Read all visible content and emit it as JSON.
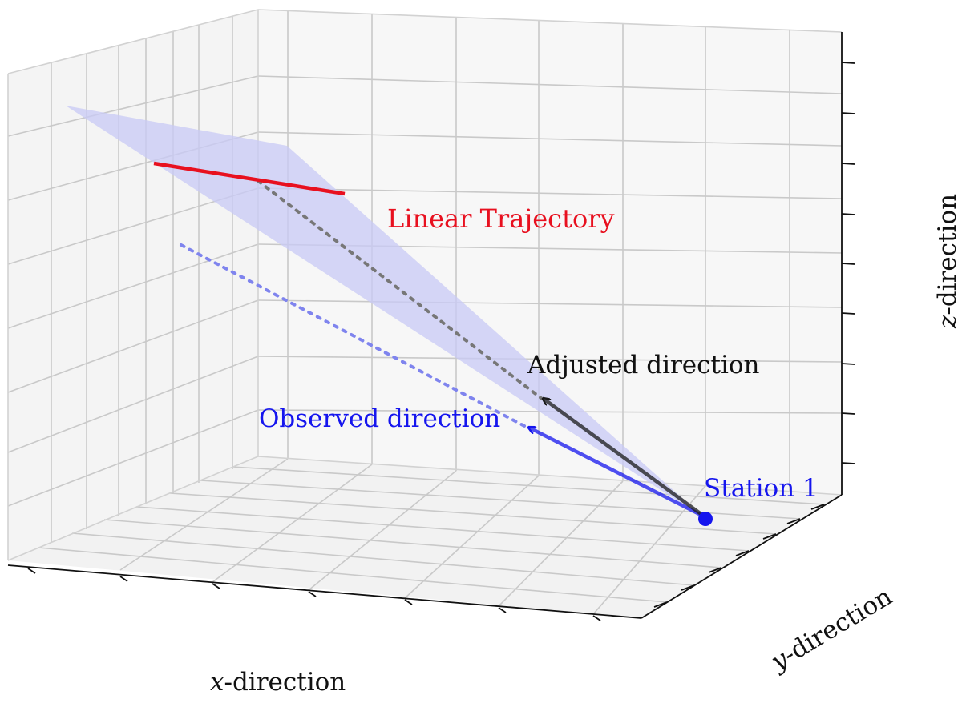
{
  "labels": {
    "trajectory": "Linear Trajectory",
    "adjusted": "Adjusted direction",
    "observed": "Observed direction",
    "station": "Station 1"
  },
  "axes": {
    "x_label_var": "x",
    "x_label_rest": "-direction",
    "y_label_var": "y",
    "y_label_rest": "-direction",
    "z_label_var": "z",
    "z_label_rest": "-direction"
  },
  "colors": {
    "trajectory": "#e8101f",
    "adjusted": "#1a1a1a",
    "observed": "#1515ee",
    "station": "#1515ee",
    "plane": "#c8caf5",
    "grid": "#c9c9c9",
    "axis": "#111111"
  }
}
